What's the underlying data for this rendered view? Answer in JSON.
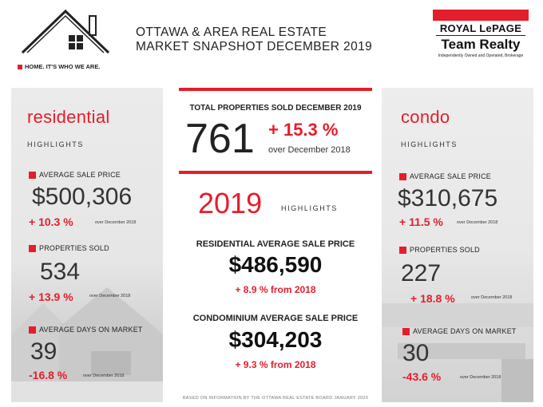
{
  "brand": {
    "tagline": "HOME. IT'S WHO WE ARE.",
    "logo_top": "ROYAL LePAGE",
    "logo_bottom": "Team Realty",
    "logo_small": "Independently Owned and Operated, Brokerage"
  },
  "header": {
    "line1": "OTTAWA & AREA REAL ESTATE",
    "line2": "MARKET SNAPSHOT DECEMBER 2019"
  },
  "residential": {
    "title": "residential",
    "subtitle": "HIGHLIGHTS",
    "avg_price_label": "AVERAGE SALE PRICE",
    "avg_price": "$500,306",
    "avg_price_change": "+ 10.3 %",
    "avg_price_note": "over December 2018",
    "sold_label": "PROPERTIES SOLD",
    "sold": "534",
    "sold_change": "+ 13.9 %",
    "sold_note": "over December 2018",
    "dom_label": "AVERAGE DAYS ON MARKET",
    "dom": "39",
    "dom_change": "-16.8 %",
    "dom_note": "over December 2018"
  },
  "center": {
    "total_label": "TOTAL PROPERTIES SOLD DECEMBER 2019",
    "total": "761",
    "total_change": "+ 15.3 %",
    "total_note": "over December 2018",
    "year": "2019",
    "year_sub": "HIGHLIGHTS",
    "res_label": "RESIDENTIAL AVERAGE SALE PRICE",
    "res_value": "$486,590",
    "res_change": "+ 8.9 % from 2018",
    "condo_label": "CONDOMINIUM AVERAGE SALE PRICE",
    "condo_value": "$304,203",
    "condo_change": "+ 9.3 % from 2018",
    "footnote": "BASED ON INFORMATION BY THE OTTAWA REAL ESTATE BOARD JANUARY 2020"
  },
  "condo": {
    "title": "condo",
    "subtitle": "HIGHLIGHTS",
    "avg_price_label": "AVERAGE SALE PRICE",
    "avg_price": "$310,675",
    "avg_price_change": "+ 11.5 %",
    "avg_price_note": "over December 2018",
    "sold_label": "PROPERTIES SOLD",
    "sold": "227",
    "sold_change": "+ 18.8 %",
    "sold_note": "over December 2018",
    "dom_label": "AVERAGE DAYS ON MARKET",
    "dom": "30",
    "dom_change": "-43.6 %",
    "dom_note": "over December 2018"
  },
  "colors": {
    "accent": "#e41e2b",
    "text": "#222222",
    "panel": "#e9e9e9"
  }
}
